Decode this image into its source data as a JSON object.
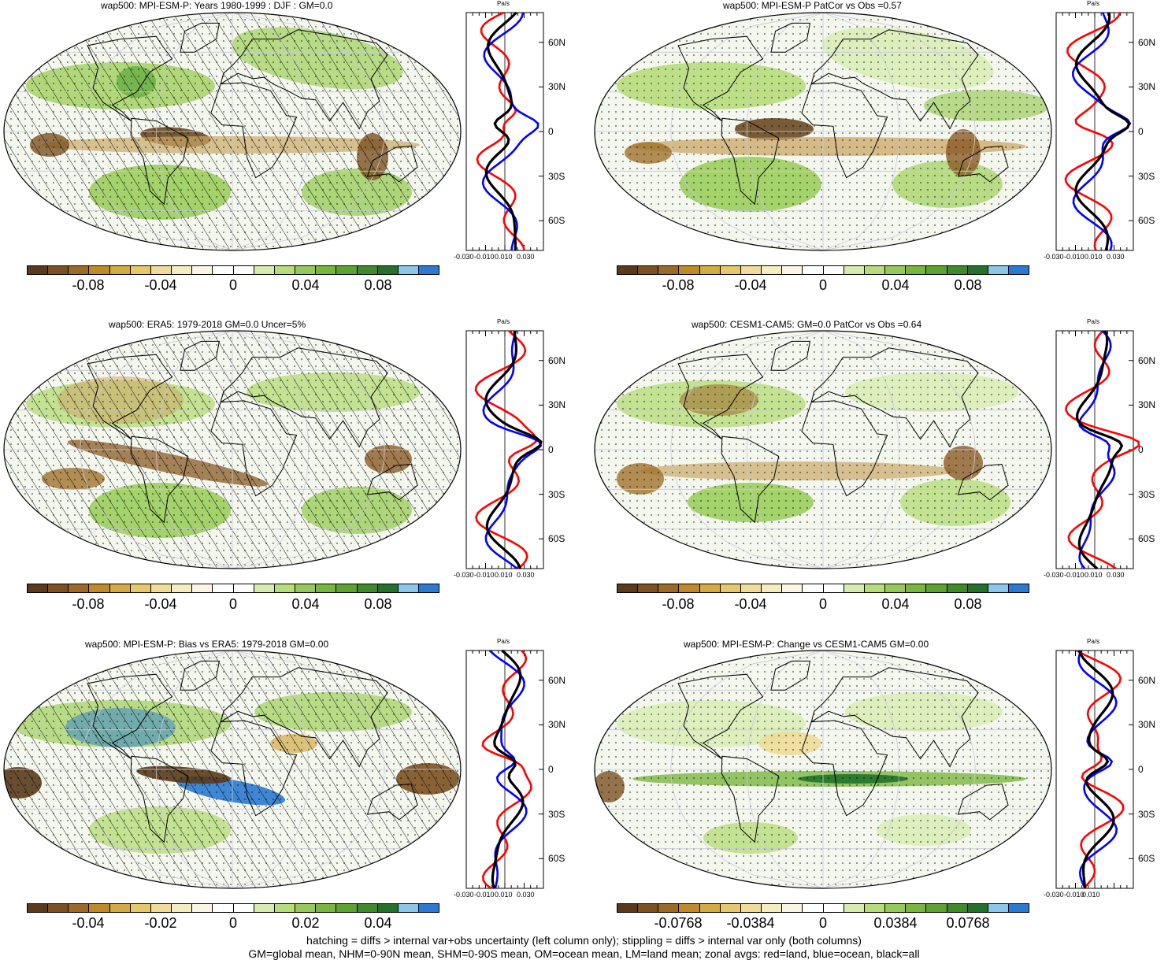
{
  "panels": [
    {
      "title": "wap500: MPI-ESM-P: Years 1980-1999 : DJF : GM=0.0",
      "colorbar_labels": [
        "-0.08",
        "-0.04",
        "0",
        "0.04",
        "0.08"
      ],
      "hatched": true,
      "stippled": true
    },
    {
      "title": "wap500: MPI-ESM-P PatCor vs Obs =0.57",
      "colorbar_labels": [
        "-0.08",
        "-0.04",
        "0",
        "0.04",
        "0.08"
      ],
      "hatched": false,
      "stippled": true
    },
    {
      "title": "wap500: ERA5: 1979-2018 GM=0.0 Uncer=5%",
      "colorbar_labels": [
        "-0.08",
        "-0.04",
        "0",
        "0.04",
        "0.08"
      ],
      "hatched": true,
      "stippled": true
    },
    {
      "title": "wap500: CESM1-CAM5: GM=0.0 PatCor vs Obs =0.64",
      "colorbar_labels": [
        "-0.08",
        "-0.04",
        "0",
        "0.04",
        "0.08"
      ],
      "hatched": false,
      "stippled": true
    },
    {
      "title": "wap500: MPI-ESM-P: Bias vs ERA5: 1979-2018 GM=0.00",
      "colorbar_labels": [
        "-0.04",
        "-0.02",
        "0",
        "0.02",
        "0.04"
      ],
      "hatched": true,
      "stippled": true
    },
    {
      "title": "wap500: MPI-ESM-P: Change vs CESM1-CAM5 GM=0.00",
      "colorbar_labels": [
        "-0.0768",
        "-0.0384",
        "0",
        "0.0384",
        "0.0768"
      ],
      "hatched": false,
      "stippled": true
    }
  ],
  "zonal": {
    "unit": "Pa/s",
    "lat_ticks": [
      "60N",
      "30N",
      "0",
      "30S",
      "60S"
    ],
    "x_ticks_full": [
      "-0.030",
      "-0.010",
      "0.010",
      "0.030"
    ],
    "x_ticks_short": [
      "-0.030",
      "-0.010",
      "0.010"
    ]
  },
  "colors": {
    "land": "#ff0000",
    "ocean": "#0000ff",
    "all": "#000000",
    "palette": [
      "#5a3a1a",
      "#7c5020",
      "#9c6a26",
      "#c08a2a",
      "#d3aa44",
      "#e3c86e",
      "#eedc98",
      "#f5ecbf",
      "#faf6e3",
      "#ffffff",
      "#ffffff",
      "#d9ecb0",
      "#b7dc7a",
      "#97c95a",
      "#79b640",
      "#5ea233",
      "#408a2a",
      "#24722a",
      "#8cc6ea",
      "#2b7ad0"
    ]
  },
  "footer": {
    "line1": "hatching = diffs > internal var+obs uncertainty (left column only); stippling = diffs > internal var only (both columns)",
    "line2": "GM=global mean, NHM=0-90N mean, SHM=0-90S mean, OM=ocean mean, LM=land mean; zonal avgs: red=land, blue=ocean, black=all"
  }
}
